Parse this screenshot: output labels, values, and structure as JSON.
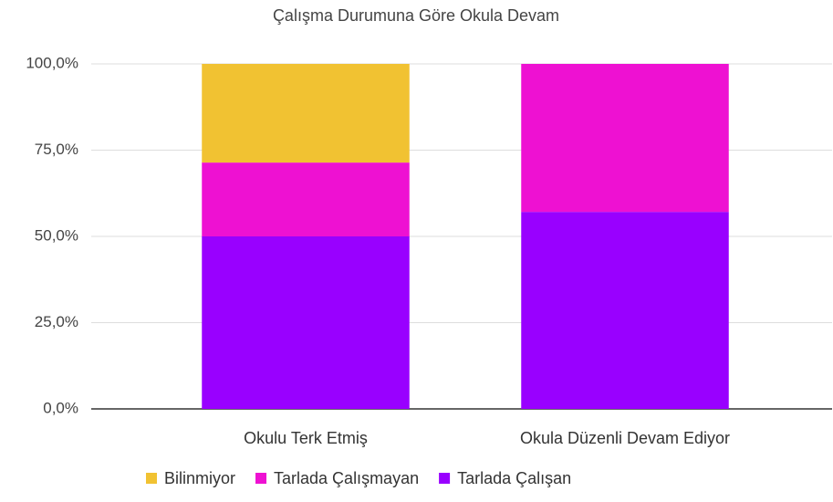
{
  "chart_data": {
    "type": "stacked_bar",
    "title": "Çalışma Durumuna Göre Okula Devam",
    "categories": [
      "Okulu Terk Etmiş",
      "Okula Düzenli Devam Ediyor"
    ],
    "series": [
      {
        "name": "Bilinmiyor",
        "color": "#f1c232",
        "values": [
          28.6,
          0
        ]
      },
      {
        "name": "Tarlada Çalışmayan",
        "color": "#ee11d2",
        "values": [
          21.4,
          42.9
        ]
      },
      {
        "name": "Tarlada Çalışan",
        "color": "#9900ff",
        "values": [
          50,
          57.1
        ]
      }
    ],
    "ylim": [
      0,
      100
    ],
    "yticks": [
      {
        "value": 0,
        "label": "0,0%"
      },
      {
        "value": 25,
        "label": "25,0%"
      },
      {
        "value": 50,
        "label": "50,0%"
      },
      {
        "value": 75,
        "label": "75,0%"
      },
      {
        "value": 100,
        "label": "100,0%"
      }
    ],
    "grid": true,
    "legend": "bottom"
  }
}
